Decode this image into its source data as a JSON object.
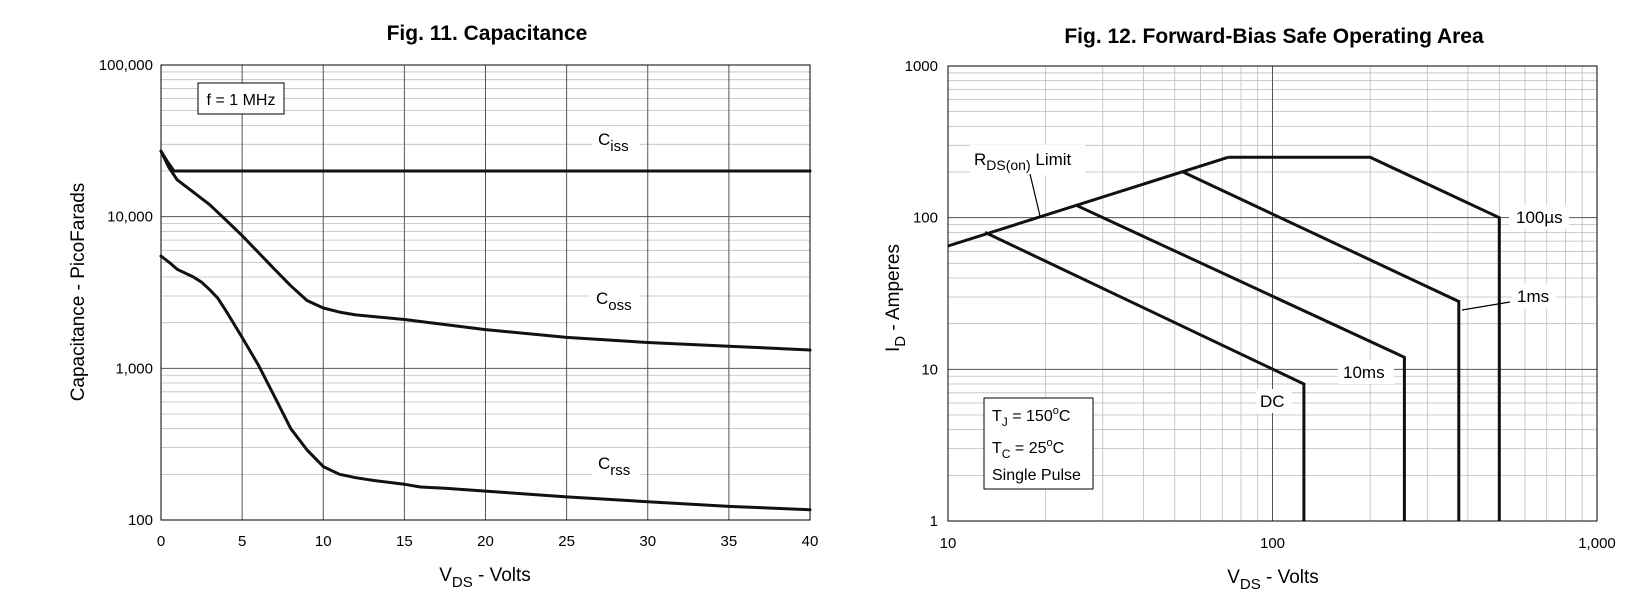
{
  "chart_data": [
    {
      "type": "line",
      "title": "Fig. 11. Capacitance",
      "xlabel": {
        "main": "V",
        "sub": "DS",
        "rest": " - Volts"
      },
      "ylabel": "Capacitance - PicoFarads",
      "xlim": [
        0,
        40
      ],
      "ylim": [
        100,
        100000
      ],
      "y_scale": "log",
      "grid": true,
      "x_ticks": [
        "0",
        "5",
        "10",
        "15",
        "20",
        "25",
        "30",
        "35",
        "40"
      ],
      "y_ticks": [
        "100",
        "1,000",
        "10,000",
        "100,000"
      ],
      "note": "f = 1 MHz",
      "series": [
        {
          "name": "iss",
          "label_main": "C",
          "label_sub": "iss",
          "x": [
            0,
            0.4,
            0.8,
            40
          ],
          "y": [
            27000,
            23000,
            20000,
            20000
          ]
        },
        {
          "name": "oss",
          "label_main": "C",
          "label_sub": "oss",
          "x": [
            0,
            0.5,
            1,
            2,
            3,
            4,
            5,
            6,
            7,
            8,
            9,
            10,
            11,
            12,
            15,
            20,
            25,
            30,
            35,
            40
          ],
          "y": [
            27000,
            21000,
            17500,
            14500,
            12000,
            9500,
            7500,
            5800,
            4500,
            3500,
            2800,
            2500,
            2350,
            2250,
            2100,
            1800,
            1600,
            1480,
            1400,
            1320
          ]
        },
        {
          "name": "rss",
          "label_main": "C",
          "label_sub": "rss",
          "x": [
            0,
            0.5,
            1,
            2,
            2.5,
            3,
            3.5,
            4,
            5,
            6,
            7,
            8,
            9,
            10,
            11,
            12,
            13,
            15,
            16,
            17.5,
            20,
            25,
            30,
            35,
            40
          ],
          "y": [
            5500,
            5000,
            4500,
            4000,
            3700,
            3300,
            2900,
            2400,
            1600,
            1050,
            650,
            400,
            290,
            225,
            200,
            190,
            183,
            172,
            165,
            162,
            155,
            142,
            132,
            123,
            117
          ]
        }
      ]
    },
    {
      "type": "line",
      "title": "Fig. 12. Forward-Bias Safe Operating Area",
      "xlabel": {
        "main": "V",
        "sub": "DS",
        "rest": " - Volts"
      },
      "ylabel": {
        "main": "I",
        "sub": "D",
        "rest": " - Amperes"
      },
      "xlim": [
        10,
        1000
      ],
      "ylim": [
        1,
        1000
      ],
      "x_scale": "log",
      "y_scale": "log",
      "grid": true,
      "x_ticks": [
        "10",
        "100",
        "1,000"
      ],
      "y_ticks": [
        "1",
        "10",
        "100",
        "1000"
      ],
      "notes": {
        "tj": {
          "main": "T",
          "sub": "J",
          "rest": " = 150",
          "sup": "o",
          "unit": "C"
        },
        "tc": {
          "main": "T",
          "sub": "C",
          "rest": " = 25",
          "sup": "o",
          "unit": "C"
        },
        "pulse": "Single Pulse"
      },
      "rds_label": {
        "main": "R",
        "sub": "DS(on)",
        "rest": " Limit"
      },
      "series": [
        {
          "name": "RDS(on) Limit",
          "x": [
            10,
            73
          ],
          "y": [
            65,
            250
          ]
        },
        {
          "name": "100µs",
          "label": "100µs",
          "x": [
            73,
            200,
            500,
            500
          ],
          "y": [
            250,
            250,
            100,
            1
          ]
        },
        {
          "name": "1ms",
          "label": "1ms",
          "x": [
            53,
            375,
            375
          ],
          "y": [
            200,
            28,
            1
          ]
        },
        {
          "name": "10ms",
          "label": "10ms",
          "x": [
            25,
            255,
            255
          ],
          "y": [
            120,
            12,
            1
          ]
        },
        {
          "name": "DC",
          "label": "DC",
          "x": [
            13,
            125,
            125
          ],
          "y": [
            80,
            8,
            1
          ]
        }
      ]
    }
  ]
}
